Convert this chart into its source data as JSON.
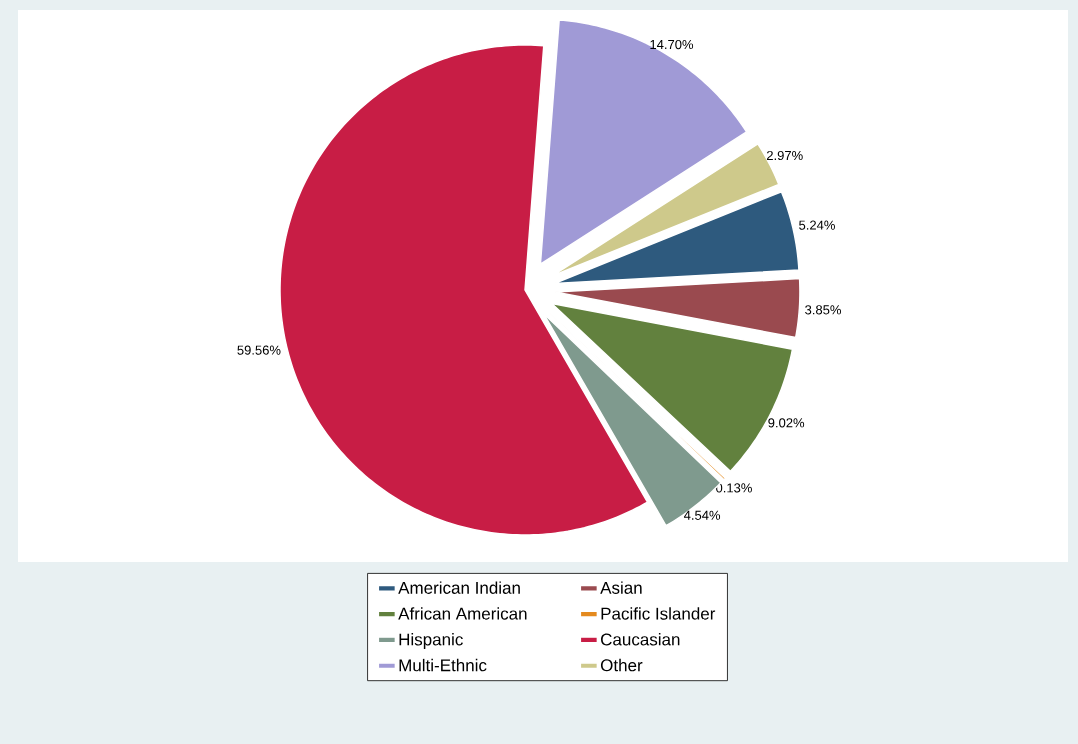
{
  "chart_data": {
    "type": "pie",
    "categories": [
      "American Indian",
      "Asian",
      "African American",
      "Pacific Islander",
      "Hispanic",
      "Caucasian",
      "Multi-Ethnic",
      "Other"
    ],
    "values": [
      5.24,
      3.85,
      9.02,
      0.13,
      4.54,
      59.56,
      14.7,
      2.97
    ],
    "colors": [
      "#2e5a7e",
      "#9a4a4f",
      "#62813e",
      "#e48a1e",
      "#7f9a8e",
      "#c81d45",
      "#a09ad6",
      "#cec98b"
    ],
    "value_labels": [
      "5.24%",
      "3.85%",
      "9.02%",
      "0.13%",
      "4.54%",
      "59.56%",
      "14.70%",
      "2.97%"
    ],
    "legend": "bottom"
  }
}
